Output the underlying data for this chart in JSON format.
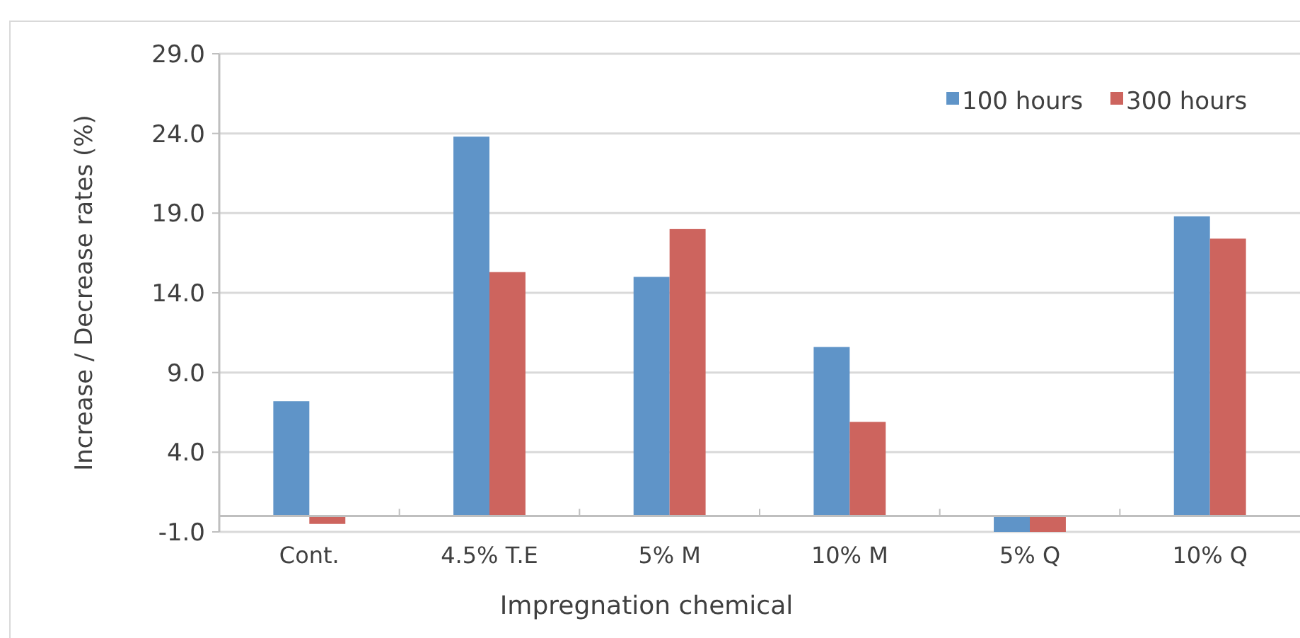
{
  "chart_data": {
    "type": "bar",
    "xlabel": "Impregnation chemical",
    "ylabel": "Increase / Decrease rates (%)",
    "categories": [
      "Cont.",
      "4.5% T.E",
      "5% M",
      "10% M",
      "5% Q",
      "10% Q"
    ],
    "series": [
      {
        "name": "100 hours",
        "color": "#5f94c8",
        "values": [
          7.2,
          23.8,
          15.0,
          10.6,
          -1.0,
          18.8
        ]
      },
      {
        "name": "300 hours",
        "color": "#cd645e",
        "values": [
          -0.5,
          15.3,
          18.0,
          5.9,
          -1.0,
          17.4
        ]
      }
    ],
    "ylim": [
      -1.0,
      29.0
    ],
    "yticks": [
      {
        "value": -1,
        "label": "-1.0"
      },
      {
        "value": 4,
        "label": "4.0"
      },
      {
        "value": 9,
        "label": "9.0"
      },
      {
        "value": 14,
        "label": "14.0"
      },
      {
        "value": 19,
        "label": "19.0"
      },
      {
        "value": 24,
        "label": "24.0"
      },
      {
        "value": 29,
        "label": "29.0"
      }
    ],
    "grid": "y",
    "legend": "top right"
  }
}
